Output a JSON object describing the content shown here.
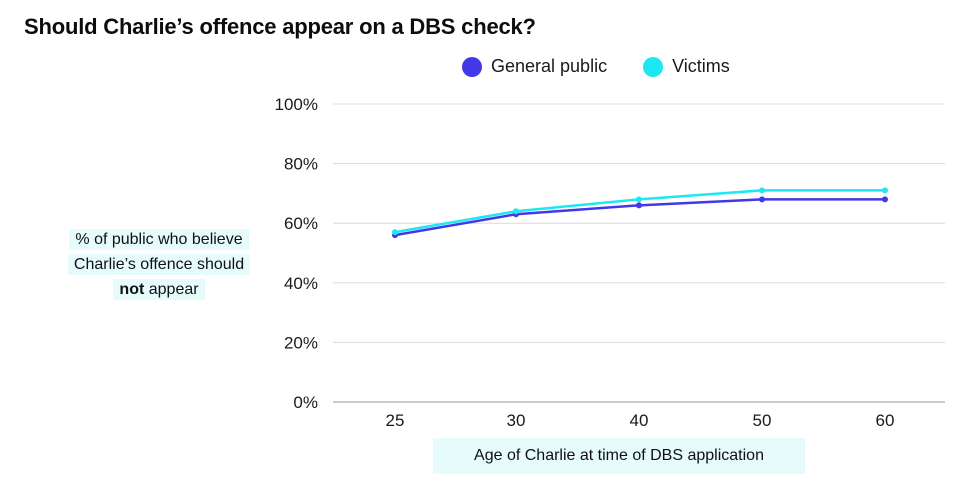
{
  "chart_data": {
    "type": "line",
    "title": "Should Charlie’s offence appear on a DBS check?",
    "xlabel": "Age of Charlie at time of DBS application",
    "ylabel_parts": [
      "% of public who believe",
      "Charlie’s offence should",
      "not",
      "appear"
    ],
    "categories": [
      "25",
      "30",
      "40",
      "50",
      "60"
    ],
    "ylim": [
      0,
      100
    ],
    "yticks": [
      0,
      20,
      40,
      60,
      80,
      100
    ],
    "ytick_labels": [
      "0%",
      "20%",
      "40%",
      "60%",
      "80%",
      "100%"
    ],
    "grid": true,
    "legend_position": "top",
    "series": [
      {
        "name": "General public",
        "color": "#4338e8",
        "values": [
          56,
          63,
          66,
          68,
          68
        ]
      },
      {
        "name": "Victims",
        "color": "#1de8f2",
        "values": [
          57,
          64,
          68,
          71,
          71
        ]
      }
    ]
  }
}
